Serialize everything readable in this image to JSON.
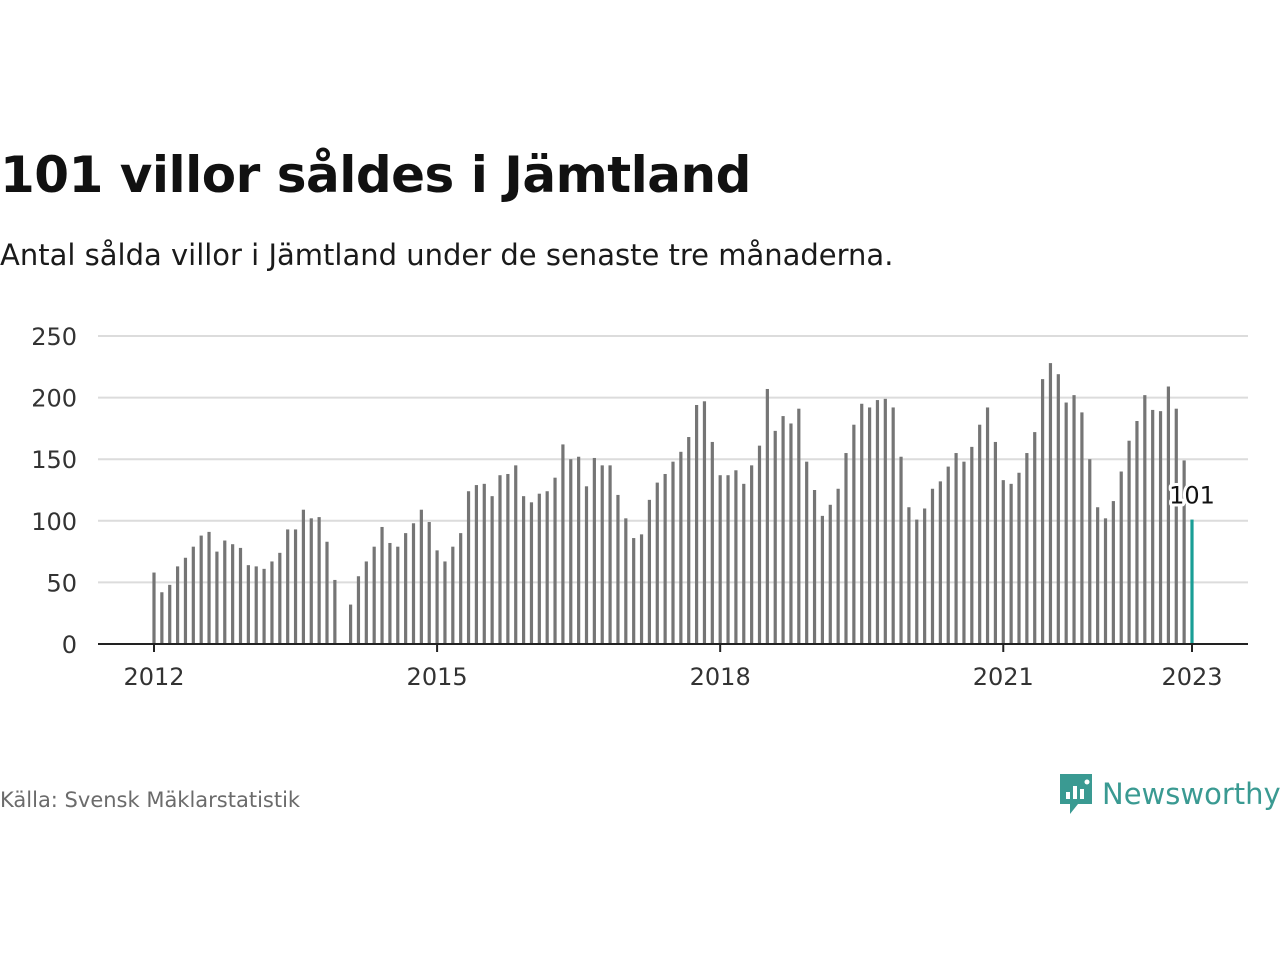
{
  "header": {
    "title": "101 villor såldes i Jämtland",
    "subtitle": "Antal sålda villor i Jämtland under de senaste tre månaderna."
  },
  "footer": {
    "source": "Källa: Svensk Mäklarstatistik",
    "brand": "Newsworthy"
  },
  "colors": {
    "bar": "#757575",
    "highlight": "#1a9e96",
    "grid": "#dcdcdc",
    "brand": "#3a9a92"
  },
  "chart_data": {
    "type": "bar",
    "x_start": "2012-01",
    "interval": "month",
    "x_ticks": [
      "2012",
      "2015",
      "2018",
      "2021",
      "2023"
    ],
    "y_ticks": [
      0,
      50,
      100,
      150,
      200,
      250
    ],
    "ylim": [
      0,
      250
    ],
    "grid": true,
    "highlight_label": "101",
    "values": [
      58,
      42,
      48,
      63,
      70,
      79,
      88,
      91,
      75,
      84,
      81,
      78,
      64,
      63,
      61,
      67,
      74,
      93,
      93,
      109,
      102,
      103,
      83,
      52,
      null,
      32,
      55,
      67,
      79,
      95,
      82,
      79,
      90,
      98,
      109,
      99,
      76,
      67,
      79,
      90,
      124,
      129,
      130,
      120,
      137,
      138,
      145,
      120,
      115,
      122,
      124,
      135,
      162,
      150,
      152,
      128,
      151,
      145,
      145,
      121,
      102,
      86,
      89,
      117,
      131,
      138,
      148,
      156,
      168,
      194,
      197,
      164,
      137,
      137,
      141,
      130,
      145,
      161,
      207,
      173,
      185,
      179,
      191,
      148,
      125,
      104,
      113,
      126,
      155,
      178,
      195,
      192,
      198,
      199,
      192,
      152,
      111,
      101,
      110,
      126,
      132,
      144,
      155,
      148,
      160,
      178,
      192,
      164,
      133,
      130,
      139,
      155,
      172,
      215,
      228,
      219,
      196,
      202,
      188,
      150,
      111,
      102,
      116,
      140,
      165,
      181,
      202,
      190,
      189,
      209,
      191,
      149,
      101
    ]
  }
}
